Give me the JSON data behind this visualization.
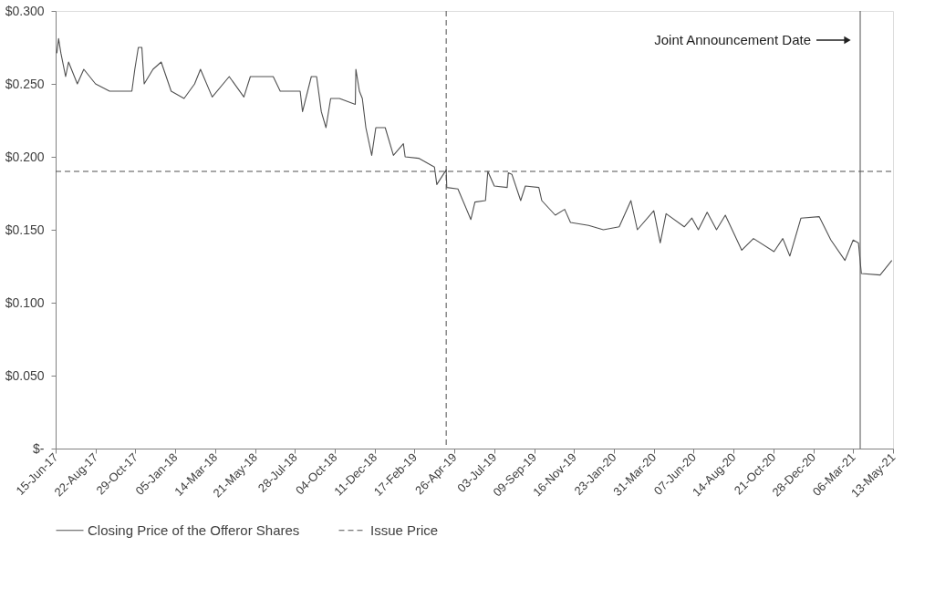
{
  "chart_data": {
    "type": "line",
    "xlim": [
      "2017-06-15",
      "2021-05-13"
    ],
    "xticks": [
      {
        "value": "2017-06-15",
        "label": "15-Jun-17"
      },
      {
        "value": "2017-08-22",
        "label": "22-Aug-17"
      },
      {
        "value": "2017-10-29",
        "label": "29-Oct-17"
      },
      {
        "value": "2018-01-05",
        "label": "05-Jan-18"
      },
      {
        "value": "2018-03-14",
        "label": "14-Mar-18"
      },
      {
        "value": "2018-05-21",
        "label": "21-May-18"
      },
      {
        "value": "2018-07-28",
        "label": "28-Jul-18"
      },
      {
        "value": "2018-10-04",
        "label": "04-Oct-18"
      },
      {
        "value": "2018-12-11",
        "label": "11-Dec-18"
      },
      {
        "value": "2019-02-17",
        "label": "17-Feb-19"
      },
      {
        "value": "2019-04-26",
        "label": "26-Apr-19"
      },
      {
        "value": "2019-07-03",
        "label": "03-Jul-19"
      },
      {
        "value": "2019-09-09",
        "label": "09-Sep-19"
      },
      {
        "value": "2019-11-16",
        "label": "16-Nov-19"
      },
      {
        "value": "2020-01-23",
        "label": "23-Jan-20"
      },
      {
        "value": "2020-03-31",
        "label": "31-Mar-20"
      },
      {
        "value": "2020-06-07",
        "label": "07-Jun-20"
      },
      {
        "value": "2020-08-14",
        "label": "14-Aug-20"
      },
      {
        "value": "2020-10-21",
        "label": "21-Oct-20"
      },
      {
        "value": "2020-12-28",
        "label": "28-Dec-20"
      },
      {
        "value": "2021-03-06",
        "label": "06-Mar-21"
      },
      {
        "value": "2021-05-13",
        "label": "13-May-21"
      }
    ],
    "ylim": [
      0,
      0.3
    ],
    "yticks": [
      {
        "value": 0,
        "label": "$-"
      },
      {
        "value": 0.05,
        "label": "$0.050"
      },
      {
        "value": 0.1,
        "label": "$0.100"
      },
      {
        "value": 0.15,
        "label": "$0.150"
      },
      {
        "value": 0.2,
        "label": "$0.200"
      },
      {
        "value": 0.25,
        "label": "$0.250"
      },
      {
        "value": 0.3,
        "label": "$0.300"
      }
    ],
    "grid": false,
    "legend": "bottom",
    "marker": "none",
    "series": [
      {
        "name": "Closing Price of the Offeror Shares",
        "color": "#505050",
        "line_style": "solid",
        "x": [
          "2017-06-17",
          "2017-06-20",
          "2017-06-24",
          "2017-07-02",
          "2017-07-07",
          "2017-07-22",
          "2017-08-02",
          "2017-08-22",
          "2017-09-15",
          "2017-10-23",
          "2017-10-28",
          "2017-11-03",
          "2017-11-09",
          "2017-11-13",
          "2017-11-28",
          "2017-12-12",
          "2017-12-29",
          "2018-01-20",
          "2018-02-07",
          "2018-02-17",
          "2018-03-09",
          "2018-04-07",
          "2018-05-02",
          "2018-05-13",
          "2018-06-21",
          "2018-07-03",
          "2018-08-06",
          "2018-08-10",
          "2018-08-25",
          "2018-09-03",
          "2018-09-11",
          "2018-09-19",
          "2018-09-27",
          "2018-10-12",
          "2018-11-08",
          "2018-11-09",
          "2018-11-15",
          "2018-11-20",
          "2018-11-26",
          "2018-12-06",
          "2018-12-13",
          "2018-12-29",
          "2019-01-12",
          "2019-01-29",
          "2019-02-01",
          "2019-02-24",
          "2019-03-23",
          "2019-03-27",
          "2019-04-12",
          "2019-04-13",
          "2019-05-02",
          "2019-05-24",
          "2019-05-31",
          "2019-06-18",
          "2019-06-22",
          "2019-07-03",
          "2019-07-25",
          "2019-07-27",
          "2019-08-02",
          "2019-08-17",
          "2019-08-25",
          "2019-09-17",
          "2019-09-22",
          "2019-10-15",
          "2019-10-31",
          "2019-11-10",
          "2019-12-11",
          "2020-01-05",
          "2020-02-01",
          "2020-02-21",
          "2020-03-03",
          "2020-03-31",
          "2020-04-11",
          "2020-04-21",
          "2020-05-22",
          "2020-06-04",
          "2020-06-15",
          "2020-06-30",
          "2020-07-16",
          "2020-07-31",
          "2020-08-28",
          "2020-09-17",
          "2020-10-22",
          "2020-11-06",
          "2020-11-18",
          "2020-12-07",
          "2021-01-07",
          "2021-01-27",
          "2021-02-20",
          "2021-03-06",
          "2021-03-15",
          "2021-03-20",
          "2021-04-21",
          "2021-05-11"
        ],
        "values": [
          0.271,
          0.281,
          0.271,
          0.255,
          0.265,
          0.25,
          0.26,
          0.25,
          0.245,
          0.245,
          0.26,
          0.275,
          0.275,
          0.25,
          0.26,
          0.265,
          0.245,
          0.24,
          0.25,
          0.26,
          0.241,
          0.255,
          0.241,
          0.255,
          0.255,
          0.245,
          0.245,
          0.231,
          0.255,
          0.255,
          0.231,
          0.22,
          0.24,
          0.24,
          0.236,
          0.26,
          0.245,
          0.24,
          0.22,
          0.201,
          0.22,
          0.22,
          0.201,
          0.209,
          0.2,
          0.199,
          0.193,
          0.181,
          0.191,
          0.179,
          0.178,
          0.157,
          0.169,
          0.17,
          0.19,
          0.18,
          0.179,
          0.189,
          0.188,
          0.17,
          0.18,
          0.179,
          0.17,
          0.16,
          0.164,
          0.155,
          0.153,
          0.15,
          0.152,
          0.17,
          0.15,
          0.163,
          0.141,
          0.161,
          0.152,
          0.158,
          0.15,
          0.162,
          0.15,
          0.16,
          0.136,
          0.144,
          0.135,
          0.144,
          0.132,
          0.158,
          0.159,
          0.143,
          0.129,
          0.143,
          0.141,
          0.12,
          0.119,
          0.129
        ]
      },
      {
        "name": "Issue Price",
        "color": "#505050",
        "line_style": "dashed",
        "x": [
          "2017-06-15",
          "2021-05-13"
        ],
        "values": [
          0.19,
          0.19
        ]
      }
    ],
    "ref_lines": [
      {
        "axis": "x",
        "value": "2019-04-12",
        "color": "#505050",
        "line_style": "dashed"
      },
      {
        "axis": "x",
        "value": "2021-03-18",
        "color": "#505050",
        "line_style": "solid"
      }
    ],
    "annotations": [
      "Joint Announcement Date"
    ]
  }
}
